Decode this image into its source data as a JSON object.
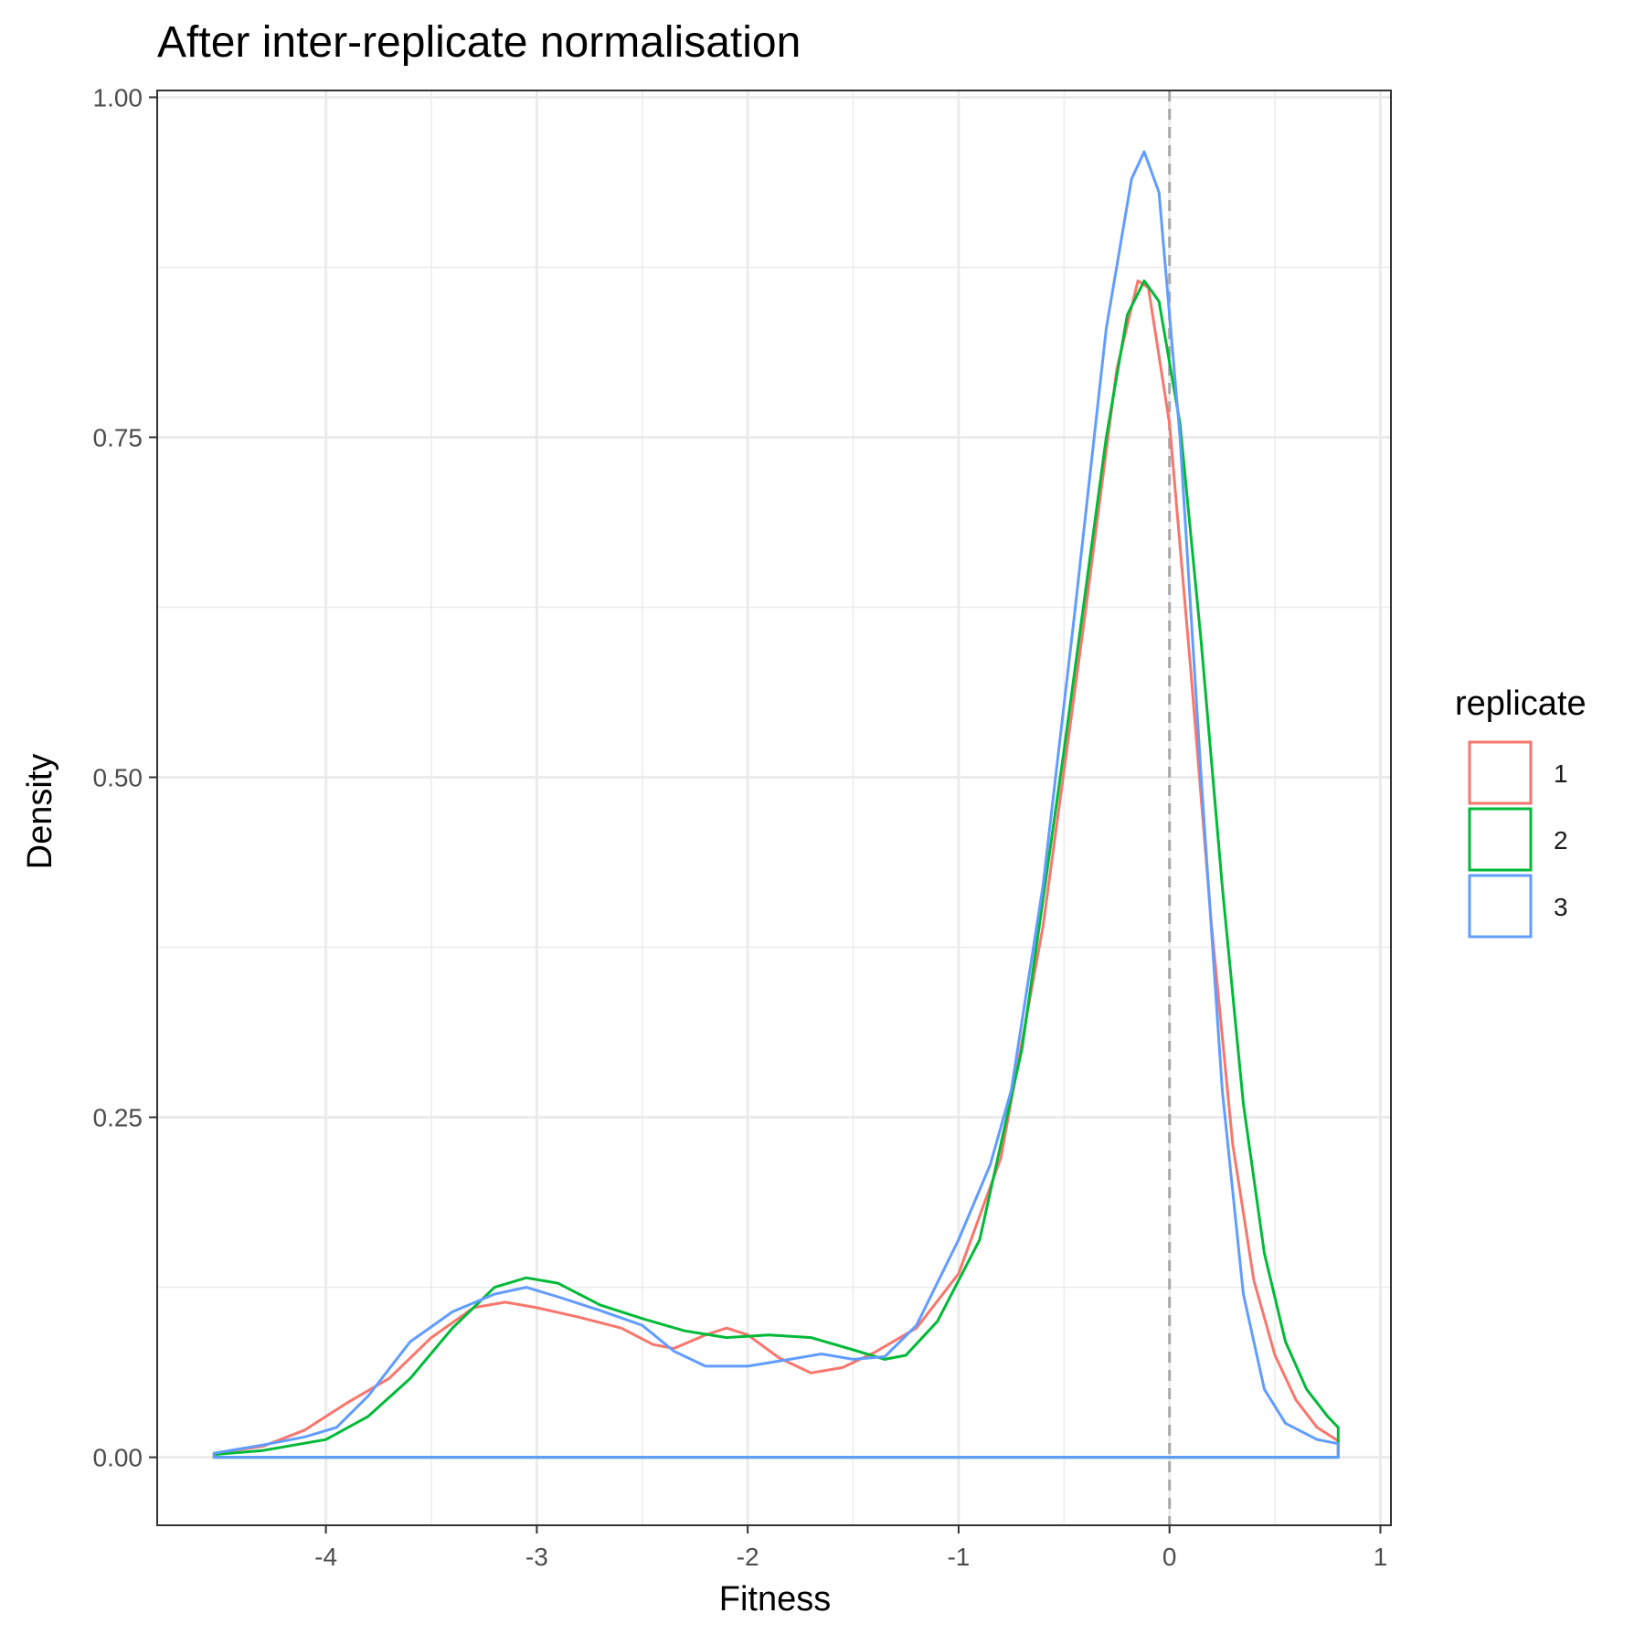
{
  "chart_data": {
    "type": "line",
    "title": "After inter-replicate normalisation",
    "xlabel": "Fitness",
    "ylabel": "Density",
    "xlim": [
      -4.8,
      1.05
    ],
    "ylim": [
      -0.05,
      1.005
    ],
    "x_ticks": [
      -4,
      -3,
      -2,
      -1,
      0,
      1
    ],
    "x_tick_labels": [
      "-4",
      "-3",
      "-2",
      "-1",
      "0",
      "1"
    ],
    "y_ticks": [
      0,
      0.25,
      0.5,
      0.75,
      1.0
    ],
    "y_tick_labels": [
      "0.00",
      "0.25",
      "0.50",
      "0.75",
      "1.00"
    ],
    "grid": true,
    "legend": {
      "title": "replicate",
      "position": "right"
    },
    "reference_line": {
      "x": 0,
      "style": "dashed",
      "color": "#a9a9a9"
    },
    "series": [
      {
        "name": "1",
        "color": "#F8766D",
        "points": [
          [
            -4.53,
            0.003
          ],
          [
            -4.3,
            0.008
          ],
          [
            -4.1,
            0.02
          ],
          [
            -3.9,
            0.04
          ],
          [
            -3.7,
            0.058
          ],
          [
            -3.5,
            0.088
          ],
          [
            -3.3,
            0.11
          ],
          [
            -3.15,
            0.114
          ],
          [
            -3.0,
            0.11
          ],
          [
            -2.8,
            0.103
          ],
          [
            -2.6,
            0.095
          ],
          [
            -2.45,
            0.083
          ],
          [
            -2.35,
            0.08
          ],
          [
            -2.2,
            0.09
          ],
          [
            -2.1,
            0.095
          ],
          [
            -2.0,
            0.09
          ],
          [
            -1.85,
            0.073
          ],
          [
            -1.7,
            0.062
          ],
          [
            -1.55,
            0.066
          ],
          [
            -1.4,
            0.077
          ],
          [
            -1.2,
            0.095
          ],
          [
            -1.0,
            0.135
          ],
          [
            -0.8,
            0.22
          ],
          [
            -0.6,
            0.39
          ],
          [
            -0.4,
            0.62
          ],
          [
            -0.25,
            0.8
          ],
          [
            -0.15,
            0.865
          ],
          [
            -0.1,
            0.86
          ],
          [
            0.0,
            0.76
          ],
          [
            0.1,
            0.58
          ],
          [
            0.2,
            0.39
          ],
          [
            0.3,
            0.23
          ],
          [
            0.4,
            0.13
          ],
          [
            0.5,
            0.075
          ],
          [
            0.6,
            0.042
          ],
          [
            0.7,
            0.022
          ],
          [
            0.8,
            0.012
          ]
        ]
      },
      {
        "name": "2",
        "color": "#00BA38",
        "points": [
          [
            -4.53,
            0.002
          ],
          [
            -4.3,
            0.005
          ],
          [
            -4.0,
            0.013
          ],
          [
            -3.8,
            0.03
          ],
          [
            -3.6,
            0.058
          ],
          [
            -3.4,
            0.095
          ],
          [
            -3.2,
            0.125
          ],
          [
            -3.05,
            0.132
          ],
          [
            -2.9,
            0.128
          ],
          [
            -2.7,
            0.112
          ],
          [
            -2.5,
            0.102
          ],
          [
            -2.3,
            0.093
          ],
          [
            -2.1,
            0.088
          ],
          [
            -1.9,
            0.09
          ],
          [
            -1.7,
            0.088
          ],
          [
            -1.5,
            0.079
          ],
          [
            -1.35,
            0.072
          ],
          [
            -1.25,
            0.075
          ],
          [
            -1.1,
            0.1
          ],
          [
            -0.9,
            0.16
          ],
          [
            -0.7,
            0.3
          ],
          [
            -0.5,
            0.52
          ],
          [
            -0.3,
            0.75
          ],
          [
            -0.2,
            0.84
          ],
          [
            -0.12,
            0.865
          ],
          [
            -0.05,
            0.85
          ],
          [
            0.05,
            0.76
          ],
          [
            0.15,
            0.6
          ],
          [
            0.25,
            0.42
          ],
          [
            0.35,
            0.26
          ],
          [
            0.45,
            0.15
          ],
          [
            0.55,
            0.085
          ],
          [
            0.65,
            0.05
          ],
          [
            0.75,
            0.03
          ],
          [
            0.8,
            0.022
          ]
        ]
      },
      {
        "name": "3",
        "color": "#619CFF",
        "points": [
          [
            -4.53,
            0.003
          ],
          [
            -4.3,
            0.009
          ],
          [
            -4.1,
            0.015
          ],
          [
            -3.95,
            0.022
          ],
          [
            -3.8,
            0.045
          ],
          [
            -3.6,
            0.085
          ],
          [
            -3.4,
            0.107
          ],
          [
            -3.2,
            0.12
          ],
          [
            -3.05,
            0.125
          ],
          [
            -2.9,
            0.118
          ],
          [
            -2.7,
            0.108
          ],
          [
            -2.5,
            0.097
          ],
          [
            -2.35,
            0.078
          ],
          [
            -2.2,
            0.067
          ],
          [
            -2.0,
            0.067
          ],
          [
            -1.8,
            0.072
          ],
          [
            -1.65,
            0.076
          ],
          [
            -1.5,
            0.072
          ],
          [
            -1.35,
            0.074
          ],
          [
            -1.2,
            0.097
          ],
          [
            -1.0,
            0.16
          ],
          [
            -0.85,
            0.215
          ],
          [
            -0.75,
            0.27
          ],
          [
            -0.6,
            0.42
          ],
          [
            -0.45,
            0.62
          ],
          [
            -0.3,
            0.83
          ],
          [
            -0.18,
            0.94
          ],
          [
            -0.12,
            0.96
          ],
          [
            -0.05,
            0.93
          ],
          [
            0.05,
            0.75
          ],
          [
            0.15,
            0.5
          ],
          [
            0.25,
            0.27
          ],
          [
            0.35,
            0.12
          ],
          [
            0.45,
            0.05
          ],
          [
            0.55,
            0.025
          ],
          [
            0.7,
            0.013
          ],
          [
            0.8,
            0.01
          ]
        ]
      }
    ]
  }
}
